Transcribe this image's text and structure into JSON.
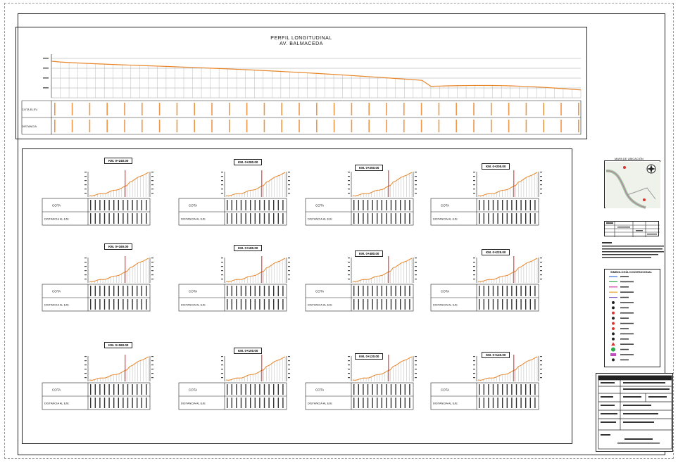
{
  "profile": {
    "title": "PERFIL LONGITUDINAL",
    "subtitle": "AV. BALMACEDA",
    "row1_label": "COTA ELEV.",
    "row2_label": "DISTANCIA"
  },
  "sections": {
    "cota_label": "COTA",
    "distancia_label": "DISTANCIA AL EJE",
    "titles": [
      "KM. 0+240.00",
      "KM. 0+280.00",
      "KM. 0+250.00",
      "KM. 0+205.00",
      "KM. 0+160.00",
      "KM. 0+180.00",
      "KM. 0+480.00",
      "KM. 0+225.00",
      "KM. 0+060.00",
      "KM. 0+100.00",
      "KM. 0+120.00",
      "KM. 0+140.00"
    ]
  },
  "side": {
    "map_title": "MAPA DE UBICACIÓN",
    "legend_title": "SIMBOLOGÍA CONVENCIONAL"
  },
  "colors": {
    "profile_line": "#e8862a",
    "section_marker": "#e02020",
    "ink": "#222222"
  }
}
